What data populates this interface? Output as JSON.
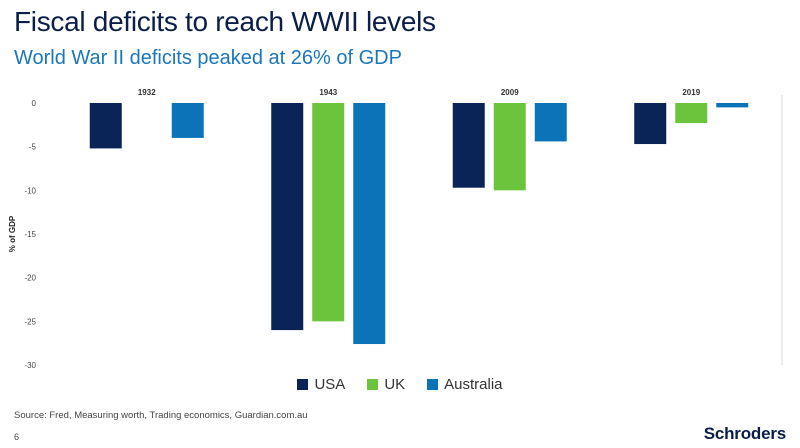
{
  "header": {
    "title": "Fiscal deficits to reach WWII levels",
    "subtitle": "World War II deficits peaked at 26% of GDP"
  },
  "footer": {
    "source": "Source: Fred, Measuring worth, Trading economics, Guardian.com.au",
    "page_number": "6",
    "logo": "Schroders"
  },
  "colors": {
    "usa": "#0a2458",
    "uk": "#6cc33c",
    "australia": "#0b74b8"
  },
  "chart_data": {
    "type": "bar",
    "categories": [
      "1932",
      "1943",
      "2009",
      "2019"
    ],
    "series": [
      {
        "name": "USA",
        "values": [
          -5.2,
          -26.0,
          -9.7,
          -4.7
        ]
      },
      {
        "name": "UK",
        "values": [
          null,
          -25.0,
          -10.0,
          -2.3
        ]
      },
      {
        "name": "Australia",
        "values": [
          -4.0,
          -27.6,
          -4.4,
          -0.5
        ]
      }
    ],
    "ylabel": "% of GDP",
    "ylim": [
      -30,
      0
    ],
    "yticks": [
      0,
      -5,
      -10,
      -15,
      -20,
      -25,
      -30
    ],
    "legend_position": "bottom-center",
    "grid": false
  }
}
